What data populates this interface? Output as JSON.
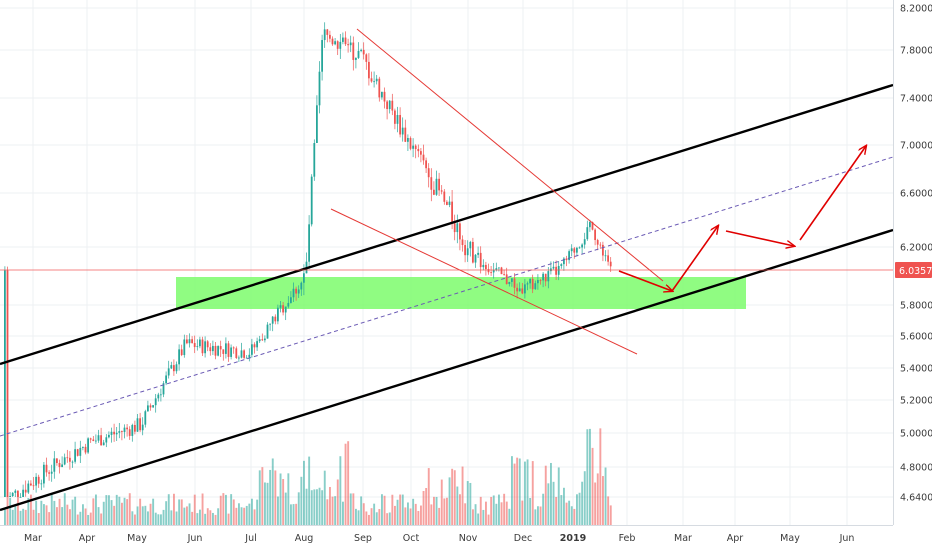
{
  "colors": {
    "up": "#26a69a",
    "down": "#ef5350",
    "volume_up": "#26a69a",
    "volume_down": "#ef5350",
    "grid": "#eef0f3",
    "axis_text": "#3a3a3a",
    "support_zone": "#7cfc6c",
    "channel": "#000000",
    "wedge": "#e53935",
    "projection": "#e00000",
    "midline": "#6b5bb5",
    "last_price_bg": "#ef5350"
  },
  "chart_data": {
    "type": "candlestick",
    "grid": true,
    "price_axis_position": "right",
    "time_axis_position": "bottom",
    "y_ticks": [
      "8.20000",
      "7.80000",
      "7.40000",
      "7.00000",
      "6.60000",
      "6.20000",
      "5.80000",
      "5.60000",
      "5.40000",
      "5.20000",
      "5.00000",
      "4.80000",
      "4.64000"
    ],
    "x_ticks": [
      "Mar",
      "Apr",
      "May",
      "Jun",
      "Jul",
      "Aug",
      "Sep",
      "Oct",
      "Nov",
      "Dec",
      "2019",
      "Feb",
      "Mar",
      "Apr",
      "May",
      "Jun"
    ],
    "last_price": "6.03572",
    "price_anchors": [
      {
        "label": "Mar",
        "value": 4.62
      },
      {
        "label": "Apr",
        "value": 4.95
      },
      {
        "label": "May",
        "value": 5.05
      },
      {
        "label": "Jun",
        "value": 5.55
      },
      {
        "label": "Jul",
        "value": 5.5
      },
      {
        "label": "Aug",
        "value": 6.0
      },
      {
        "label": "Aug",
        "value": 7.95
      },
      {
        "label": "Sep",
        "value": 7.75
      },
      {
        "label": "Oct",
        "value": 7.0
      },
      {
        "label": "Nov",
        "value": 6.15
      },
      {
        "label": "Dec",
        "value": 5.9
      },
      {
        "label": "2019",
        "value": 6.05
      },
      {
        "label": "2019",
        "value": 6.35
      },
      {
        "label": "2019",
        "value": 6.04
      }
    ],
    "annotations": {
      "support_zone": {
        "from": "Jun",
        "to": "Apr",
        "y_range": [
          5.8,
          6.0
        ]
      },
      "channel_upper": {
        "y_start": 5.55,
        "y_end": 7.45
      },
      "channel_lower": {
        "y_start": 4.62,
        "y_end": 6.22
      },
      "channel_mid": {
        "dashed": true
      },
      "falling_wedge": {
        "top_from": "Sep",
        "bottom_from": "Aug",
        "apex": "Feb"
      },
      "projection_path": [
        "Feb",
        "Mar",
        "Apr",
        "May",
        "Jun"
      ]
    }
  }
}
